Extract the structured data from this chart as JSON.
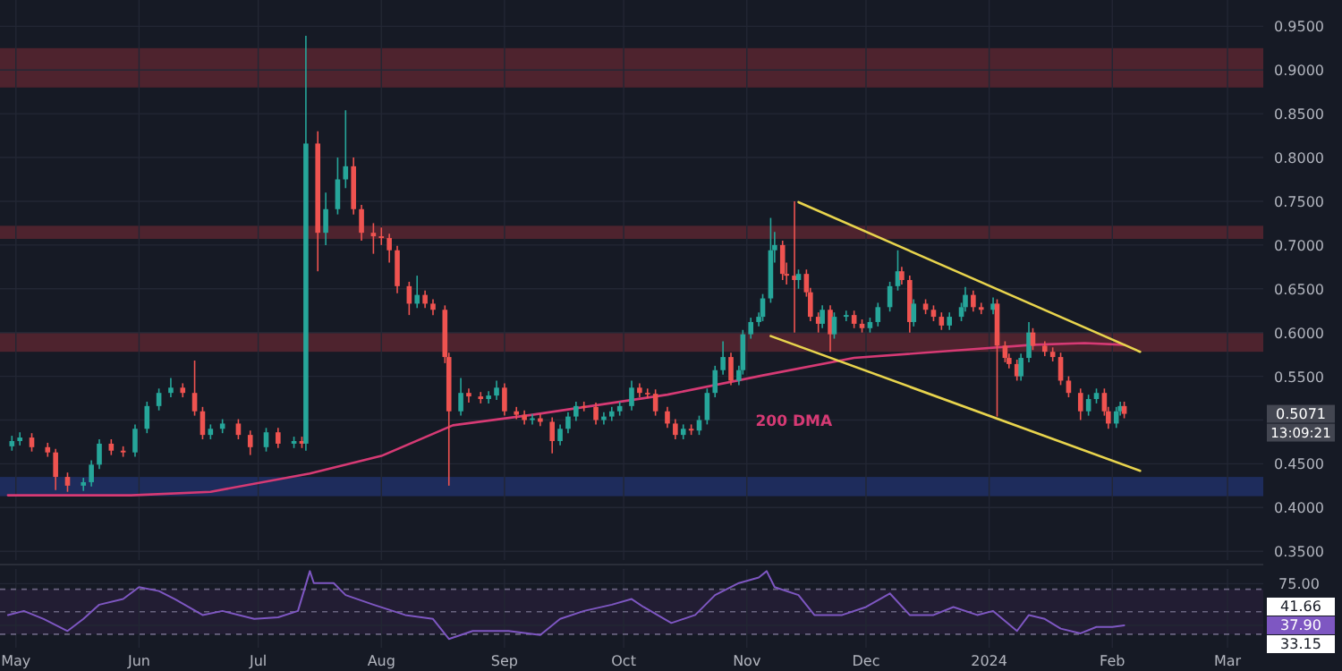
{
  "chart_data": [
    {
      "type": "candlestick",
      "x": [
        "2023-04-30",
        "2023-05-02",
        "2023-05-05",
        "2023-05-09",
        "2023-05-11",
        "2023-05-14",
        "2023-05-18",
        "2023-05-20",
        "2023-05-22",
        "2023-05-25",
        "2023-05-28",
        "2023-05-31",
        "2023-06-03",
        "2023-06-06",
        "2023-06-09",
        "2023-06-12",
        "2023-06-15",
        "2023-06-17",
        "2023-06-19",
        "2023-06-22",
        "2023-06-26",
        "2023-06-29",
        "2023-07-03",
        "2023-07-06",
        "2023-07-10",
        "2023-07-12",
        "2023-07-13",
        "2023-07-16",
        "2023-07-18",
        "2023-07-21",
        "2023-07-23",
        "2023-07-25",
        "2023-07-27",
        "2023-07-30",
        "2023-08-01",
        "2023-08-03",
        "2023-08-05",
        "2023-08-08",
        "2023-08-10",
        "2023-08-12",
        "2023-08-14",
        "2023-08-17",
        "2023-08-18",
        "2023-08-21",
        "2023-08-23",
        "2023-08-26",
        "2023-08-28",
        "2023-08-30",
        "2023-09-01",
        "2023-09-04",
        "2023-09-06",
        "2023-09-08",
        "2023-09-10",
        "2023-09-13",
        "2023-09-15",
        "2023-09-17",
        "2023-09-19",
        "2023-09-21",
        "2023-09-24",
        "2023-09-26",
        "2023-09-28",
        "2023-09-30",
        "2023-10-03",
        "2023-10-05",
        "2023-10-07",
        "2023-10-09",
        "2023-10-12",
        "2023-10-14",
        "2023-10-16",
        "2023-10-18",
        "2023-10-20",
        "2023-10-22",
        "2023-10-24",
        "2023-10-26",
        "2023-10-28",
        "2023-10-30",
        "2023-10-31",
        "2023-11-02",
        "2023-11-04",
        "2023-11-05",
        "2023-11-07",
        "2023-11-08",
        "2023-11-10",
        "2023-11-11",
        "2023-11-13",
        "2023-11-14",
        "2023-11-16",
        "2023-11-17",
        "2023-11-19",
        "2023-11-20",
        "2023-11-22",
        "2023-11-23",
        "2023-11-26",
        "2023-11-28",
        "2023-11-30",
        "2023-12-02",
        "2023-12-04",
        "2023-12-07",
        "2023-12-09",
        "2023-12-10",
        "2023-12-12",
        "2023-12-13",
        "2023-12-16",
        "2023-12-18",
        "2023-12-20",
        "2023-12-22",
        "2023-12-25",
        "2023-12-26",
        "2023-12-28",
        "2023-12-30",
        "2024-01-02",
        "2024-01-03",
        "2024-01-05",
        "2024-01-06",
        "2024-01-08",
        "2024-01-09",
        "2024-01-11",
        "2024-01-12",
        "2024-01-15",
        "2024-01-17",
        "2024-01-19",
        "2024-01-21",
        "2024-01-24",
        "2024-01-26",
        "2024-01-28",
        "2024-01-30",
        "2024-01-31",
        "2024-02-02",
        "2024-02-03",
        "2024-02-04"
      ],
      "ohlc": [
        [
          0.47,
          0.482,
          0.465,
          0.476
        ],
        [
          0.476,
          0.486,
          0.471,
          0.48
        ],
        [
          0.48,
          0.485,
          0.464,
          0.469
        ],
        [
          0.469,
          0.474,
          0.458,
          0.463
        ],
        [
          0.463,
          0.467,
          0.42,
          0.435
        ],
        [
          0.435,
          0.44,
          0.418,
          0.425
        ],
        [
          0.425,
          0.434,
          0.419,
          0.429
        ],
        [
          0.429,
          0.454,
          0.424,
          0.449
        ],
        [
          0.449,
          0.478,
          0.444,
          0.473
        ],
        [
          0.473,
          0.478,
          0.46,
          0.465
        ],
        [
          0.465,
          0.47,
          0.458,
          0.463
        ],
        [
          0.463,
          0.495,
          0.458,
          0.49
        ],
        [
          0.49,
          0.521,
          0.485,
          0.516
        ],
        [
          0.516,
          0.536,
          0.511,
          0.531
        ],
        [
          0.531,
          0.548,
          0.526,
          0.537
        ],
        [
          0.537,
          0.542,
          0.526,
          0.531
        ],
        [
          0.531,
          0.568,
          0.505,
          0.51
        ],
        [
          0.51,
          0.515,
          0.478,
          0.483
        ],
        [
          0.483,
          0.495,
          0.478,
          0.49
        ],
        [
          0.49,
          0.501,
          0.485,
          0.496
        ],
        [
          0.496,
          0.501,
          0.478,
          0.483
        ],
        [
          0.483,
          0.488,
          0.46,
          0.469
        ],
        [
          0.469,
          0.491,
          0.464,
          0.486
        ],
        [
          0.486,
          0.491,
          0.468,
          0.473
        ],
        [
          0.473,
          0.481,
          0.468,
          0.476
        ],
        [
          0.476,
          0.481,
          0.468,
          0.473
        ],
        [
          0.473,
          0.939,
          0.465,
          0.816
        ],
        [
          0.816,
          0.83,
          0.67,
          0.714
        ],
        [
          0.714,
          0.76,
          0.7,
          0.741
        ],
        [
          0.741,
          0.8,
          0.735,
          0.775
        ],
        [
          0.775,
          0.854,
          0.765,
          0.79
        ],
        [
          0.79,
          0.8,
          0.735,
          0.741
        ],
        [
          0.741,
          0.746,
          0.705,
          0.714
        ],
        [
          0.714,
          0.725,
          0.69,
          0.71
        ],
        [
          0.71,
          0.72,
          0.7,
          0.708
        ],
        [
          0.708,
          0.713,
          0.68,
          0.694
        ],
        [
          0.694,
          0.699,
          0.645,
          0.653
        ],
        [
          0.653,
          0.658,
          0.62,
          0.633
        ],
        [
          0.633,
          0.665,
          0.628,
          0.643
        ],
        [
          0.643,
          0.648,
          0.628,
          0.633
        ],
        [
          0.633,
          0.638,
          0.62,
          0.626
        ],
        [
          0.626,
          0.631,
          0.565,
          0.572
        ],
        [
          0.572,
          0.577,
          0.425,
          0.51
        ],
        [
          0.51,
          0.548,
          0.505,
          0.531
        ],
        [
          0.531,
          0.536,
          0.52,
          0.527
        ],
        [
          0.527,
          0.532,
          0.519,
          0.524
        ],
        [
          0.524,
          0.533,
          0.519,
          0.528
        ],
        [
          0.528,
          0.545,
          0.523,
          0.537
        ],
        [
          0.537,
          0.542,
          0.505,
          0.51
        ],
        [
          0.51,
          0.515,
          0.501,
          0.506
        ],
        [
          0.506,
          0.511,
          0.495,
          0.5
        ],
        [
          0.5,
          0.507,
          0.495,
          0.502
        ],
        [
          0.502,
          0.507,
          0.493,
          0.498
        ],
        [
          0.498,
          0.503,
          0.462,
          0.476
        ],
        [
          0.476,
          0.495,
          0.471,
          0.49
        ],
        [
          0.49,
          0.509,
          0.485,
          0.504
        ],
        [
          0.504,
          0.521,
          0.499,
          0.516
        ],
        [
          0.516,
          0.521,
          0.51,
          0.515
        ],
        [
          0.515,
          0.52,
          0.495,
          0.5
        ],
        [
          0.5,
          0.509,
          0.495,
          0.504
        ],
        [
          0.504,
          0.515,
          0.499,
          0.51
        ],
        [
          0.51,
          0.521,
          0.505,
          0.516
        ],
        [
          0.516,
          0.545,
          0.511,
          0.537
        ],
        [
          0.537,
          0.542,
          0.526,
          0.531
        ],
        [
          0.531,
          0.536,
          0.525,
          0.53
        ],
        [
          0.53,
          0.535,
          0.505,
          0.51
        ],
        [
          0.51,
          0.515,
          0.491,
          0.496
        ],
        [
          0.496,
          0.501,
          0.478,
          0.483
        ],
        [
          0.483,
          0.495,
          0.478,
          0.49
        ],
        [
          0.49,
          0.495,
          0.483,
          0.488
        ],
        [
          0.488,
          0.505,
          0.483,
          0.5
        ],
        [
          0.5,
          0.536,
          0.495,
          0.531
        ],
        [
          0.531,
          0.562,
          0.526,
          0.557
        ],
        [
          0.557,
          0.59,
          0.552,
          0.572
        ],
        [
          0.572,
          0.577,
          0.54,
          0.545
        ],
        [
          0.545,
          0.562,
          0.54,
          0.557
        ],
        [
          0.557,
          0.603,
          0.552,
          0.598
        ],
        [
          0.598,
          0.617,
          0.593,
          0.612
        ],
        [
          0.612,
          0.623,
          0.607,
          0.618
        ],
        [
          0.618,
          0.644,
          0.613,
          0.639
        ],
        [
          0.639,
          0.731,
          0.634,
          0.694
        ],
        [
          0.694,
          0.715,
          0.68,
          0.7
        ],
        [
          0.7,
          0.705,
          0.66,
          0.667
        ],
        [
          0.667,
          0.68,
          0.655,
          0.665
        ],
        [
          0.665,
          0.75,
          0.6,
          0.66
        ],
        [
          0.66,
          0.672,
          0.65,
          0.667
        ],
        [
          0.667,
          0.672,
          0.641,
          0.646
        ],
        [
          0.646,
          0.651,
          0.613,
          0.618
        ],
        [
          0.618,
          0.623,
          0.6,
          0.61
        ],
        [
          0.61,
          0.631,
          0.605,
          0.626
        ],
        [
          0.626,
          0.631,
          0.578,
          0.598
        ],
        [
          0.598,
          0.623,
          0.593,
          0.618
        ],
        [
          0.618,
          0.625,
          0.613,
          0.62
        ],
        [
          0.62,
          0.625,
          0.605,
          0.61
        ],
        [
          0.61,
          0.615,
          0.6,
          0.605
        ],
        [
          0.605,
          0.617,
          0.6,
          0.612
        ],
        [
          0.612,
          0.634,
          0.607,
          0.629
        ],
        [
          0.629,
          0.658,
          0.624,
          0.653
        ],
        [
          0.653,
          0.694,
          0.648,
          0.67
        ],
        [
          0.67,
          0.675,
          0.655,
          0.66
        ],
        [
          0.66,
          0.665,
          0.6,
          0.612
        ],
        [
          0.612,
          0.638,
          0.607,
          0.633
        ],
        [
          0.633,
          0.638,
          0.621,
          0.626
        ],
        [
          0.626,
          0.631,
          0.613,
          0.618
        ],
        [
          0.618,
          0.623,
          0.603,
          0.608
        ],
        [
          0.608,
          0.623,
          0.603,
          0.618
        ],
        [
          0.618,
          0.634,
          0.613,
          0.629
        ],
        [
          0.629,
          0.652,
          0.624,
          0.643
        ],
        [
          0.643,
          0.648,
          0.624,
          0.629
        ],
        [
          0.629,
          0.634,
          0.621,
          0.626
        ],
        [
          0.626,
          0.64,
          0.621,
          0.633
        ],
        [
          0.633,
          0.638,
          0.504,
          0.585
        ],
        [
          0.585,
          0.59,
          0.566,
          0.571
        ],
        [
          0.571,
          0.576,
          0.559,
          0.564
        ],
        [
          0.564,
          0.569,
          0.545,
          0.55
        ],
        [
          0.55,
          0.576,
          0.545,
          0.571
        ],
        [
          0.571,
          0.612,
          0.566,
          0.6
        ],
        [
          0.6,
          0.605,
          0.58,
          0.585
        ],
        [
          0.585,
          0.59,
          0.573,
          0.578
        ],
        [
          0.578,
          0.583,
          0.567,
          0.572
        ],
        [
          0.572,
          0.577,
          0.54,
          0.545
        ],
        [
          0.545,
          0.55,
          0.526,
          0.531
        ],
        [
          0.531,
          0.536,
          0.5,
          0.51
        ],
        [
          0.51,
          0.529,
          0.505,
          0.524
        ],
        [
          0.524,
          0.536,
          0.519,
          0.531
        ],
        [
          0.531,
          0.536,
          0.505,
          0.51
        ],
        [
          0.51,
          0.515,
          0.49,
          0.496
        ],
        [
          0.496,
          0.515,
          0.491,
          0.51
        ],
        [
          0.51,
          0.521,
          0.505,
          0.516
        ],
        [
          0.516,
          0.521,
          0.502,
          0.5071
        ]
      ],
      "series": [
        {
          "type": "line",
          "name": "200 DMA",
          "color": "#d63a74",
          "x": [
            "2023-04-29",
            "2023-05-30",
            "2023-06-19",
            "2023-07-14",
            "2023-08-01",
            "2023-08-19",
            "2023-09-08",
            "2023-10-12",
            "2023-11-05",
            "2023-11-28",
            "2023-12-25",
            "2024-01-12",
            "2024-01-25",
            "2024-02-04"
          ],
          "values": [
            0.414,
            0.414,
            0.418,
            0.439,
            0.459,
            0.494,
            0.506,
            0.529,
            0.551,
            0.571,
            0.58,
            0.586,
            0.588,
            0.586
          ]
        },
        {
          "type": "line",
          "color": "#e8d44d",
          "x": [
            "2023-11-14",
            "2024-02-08"
          ],
          "values": [
            0.749,
            0.578
          ]
        },
        {
          "type": "line",
          "color": "#e8d44d",
          "x": [
            "2023-11-07",
            "2024-02-08"
          ],
          "values": [
            0.596,
            0.442
          ]
        }
      ],
      "bands": [
        {
          "axis": "y",
          "from": 0.88,
          "to": 0.925,
          "color": "#4e232e"
        },
        {
          "axis": "y",
          "from": 0.707,
          "to": 0.722,
          "color": "#4e232e"
        },
        {
          "axis": "y",
          "from": 0.578,
          "to": 0.6,
          "color": "#4e232e"
        },
        {
          "axis": "y",
          "from": 0.413,
          "to": 0.435,
          "color": "#1e2c5c"
        }
      ],
      "annotations": [
        "0.5071",
        "13:09:21"
      ],
      "xlim": [
        "2023-04-27",
        "2024-03-10"
      ],
      "xticks": [
        {
          "value": "2023-05-01",
          "label": null
        },
        {
          "value": "2023-06-01",
          "label": null
        },
        {
          "value": "2023-07-01",
          "label": null
        },
        {
          "value": "2023-08-01",
          "label": null
        },
        {
          "value": "2023-09-01",
          "label": null
        },
        {
          "value": "2023-10-01",
          "label": null
        },
        {
          "value": "2023-11-01",
          "label": null
        },
        {
          "value": "2023-12-01",
          "label": null
        },
        {
          "value": "2024-01-01",
          "label": null
        },
        {
          "value": "2024-02-01",
          "label": null
        },
        {
          "value": "2024-03-01",
          "label": null
        }
      ],
      "ylim": [
        0.34,
        0.98
      ],
      "yticks": [
        {
          "value": 0.35,
          "label": "0.3500"
        },
        {
          "value": 0.4,
          "label": "0.4000"
        },
        {
          "value": 0.45,
          "label": "0.4500"
        },
        {
          "value": 0.5,
          "label": null
        },
        {
          "value": 0.55,
          "label": "0.5500"
        },
        {
          "value": 0.6,
          "label": "0.6000"
        },
        {
          "value": 0.65,
          "label": "0.6500"
        },
        {
          "value": 0.7,
          "label": "0.7000"
        },
        {
          "value": 0.75,
          "label": "0.7500"
        },
        {
          "value": 0.8,
          "label": "0.8000"
        },
        {
          "value": 0.85,
          "label": "0.8500"
        },
        {
          "value": 0.9,
          "label": "0.9000"
        },
        {
          "value": 0.95,
          "label": "0.9500"
        }
      ],
      "tick_labels": "y",
      "grid": true
    },
    {
      "type": "line",
      "series": [
        {
          "color": "#7e57c2",
          "x": [
            "2023-04-29",
            "2023-05-03",
            "2023-05-08",
            "2023-05-14",
            "2023-05-18",
            "2023-05-22",
            "2023-05-28",
            "2023-06-01",
            "2023-06-06",
            "2023-06-10",
            "2023-06-17",
            "2023-06-22",
            "2023-06-30",
            "2023-07-06",
            "2023-07-11",
            "2023-07-14",
            "2023-07-15",
            "2023-07-20",
            "2023-07-23",
            "2023-07-30",
            "2023-08-07",
            "2023-08-14",
            "2023-08-18",
            "2023-08-24",
            "2023-09-02",
            "2023-09-10",
            "2023-09-15",
            "2023-09-21",
            "2023-09-28",
            "2023-10-03",
            "2023-10-06",
            "2023-10-13",
            "2023-10-19",
            "2023-10-24",
            "2023-10-30",
            "2023-11-04",
            "2023-11-06",
            "2023-11-08",
            "2023-11-14",
            "2023-11-18",
            "2023-11-25",
            "2023-12-01",
            "2023-12-07",
            "2023-12-12",
            "2023-12-18",
            "2023-12-23",
            "2023-12-29",
            "2024-01-02",
            "2024-01-08",
            "2024-01-11",
            "2024-01-15",
            "2024-01-19",
            "2024-01-24",
            "2024-01-28",
            "2024-02-01",
            "2024-02-04"
          ],
          "values": [
            47.1,
            50.7,
            43.6,
            32.9,
            43.6,
            56.3,
            61.3,
            71.9,
            68.4,
            61.3,
            47.1,
            50.7,
            43.6,
            45,
            50.7,
            86.1,
            75.5,
            75.5,
            64.8,
            56.3,
            47.1,
            43.6,
            25.8,
            32.9,
            32.9,
            29.4,
            43.6,
            50.7,
            56.3,
            61.3,
            54.2,
            40,
            47.1,
            64.8,
            75.5,
            80.4,
            86.1,
            71.9,
            64.8,
            47.1,
            47.1,
            54.2,
            66.3,
            47.1,
            47.1,
            54.2,
            47.1,
            50.7,
            32.9,
            47.1,
            43.6,
            35,
            30.8,
            36.5,
            36.5,
            37.9
          ]
        }
      ],
      "bands": [
        {
          "axis": "y",
          "from": 30,
          "to": 70,
          "color": "#221d33"
        }
      ],
      "ref_lines": [
        {
          "axis": "y",
          "value": 70,
          "line_style": "dashed"
        },
        {
          "axis": "y",
          "value": 50,
          "line_style": "dashed"
        },
        {
          "axis": "y",
          "value": 30,
          "line_style": "dashed"
        }
      ],
      "annotations": [
        "41.66",
        "33.15"
      ],
      "ylim": [
        18,
        88
      ],
      "yticks": [
        {
          "value": 75,
          "label": "75.00"
        },
        {
          "value": 37.9,
          "label": "37.90"
        }
      ],
      "xlim": [
        "2023-04-27",
        "2024-03-10"
      ],
      "xticks": [
        {
          "value": "2023-05-01",
          "label": "May"
        },
        {
          "value": "2023-06-01",
          "label": "Jun"
        },
        {
          "value": "2023-07-01",
          "label": "Jul"
        },
        {
          "value": "2023-08-01",
          "label": "Aug"
        },
        {
          "value": "2023-09-01",
          "label": "Sep"
        },
        {
          "value": "2023-10-01",
          "label": "Oct"
        },
        {
          "value": "2023-11-01",
          "label": "Nov"
        },
        {
          "value": "2023-12-01",
          "label": "Dec"
        },
        {
          "value": "2024-01-01",
          "label": "2024"
        },
        {
          "value": "2024-02-01",
          "label": "Feb"
        },
        {
          "value": "2024-03-01",
          "label": "Mar"
        }
      ],
      "grid": true
    }
  ]
}
